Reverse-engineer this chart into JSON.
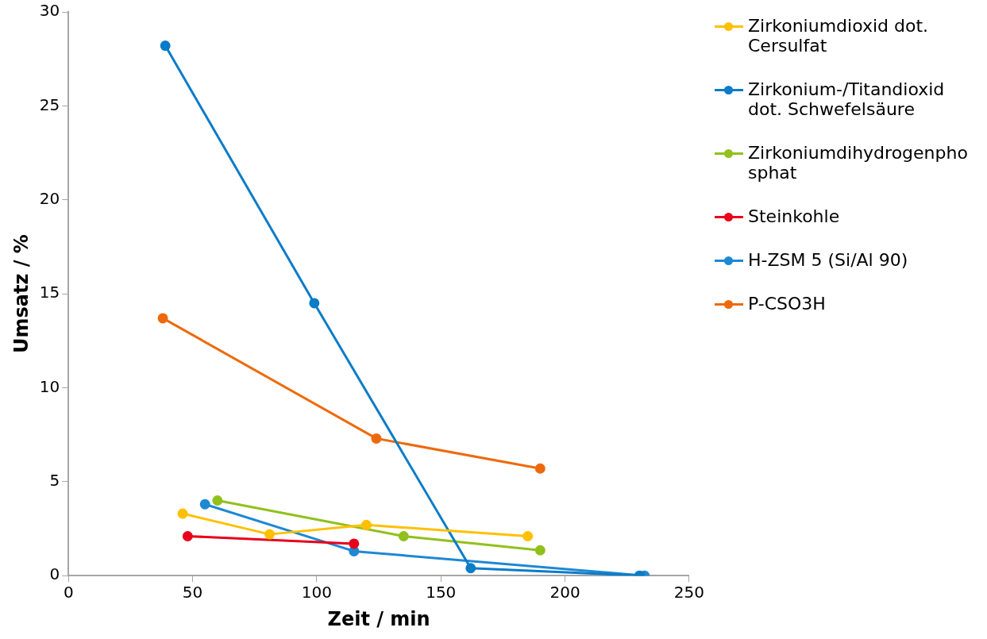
{
  "chart_data": {
    "type": "line",
    "xlabel": "Zeit / min",
    "ylabel": "Umsatz / %",
    "xlim": [
      0,
      250
    ],
    "xticks": [
      0,
      50,
      100,
      150,
      200,
      250
    ],
    "ylim": [
      0,
      30
    ],
    "yticks": [
      0,
      5,
      10,
      15,
      20,
      25,
      30
    ],
    "grid": false,
    "legend": "right",
    "marker": "circle",
    "line_style": "solid",
    "series": [
      {
        "name": "Zirkoniumdioxid dot. Cersulfat",
        "color": "#ffc000",
        "x": [
          46,
          81,
          120,
          185
        ],
        "values": [
          3.3,
          2.2,
          2.7,
          2.1
        ]
      },
      {
        "name": "Zirkonium-/Titandioxid dot. Schwefelsäure",
        "color": "#0a7cc8",
        "x": [
          39,
          99,
          162,
          230
        ],
        "values": [
          28.2,
          14.5,
          0.4,
          0
        ]
      },
      {
        "name": "Zirkoniumdihydrogenphosphat",
        "color": "#92c01c",
        "x": [
          60,
          135,
          190
        ],
        "values": [
          4.0,
          2.1,
          1.35
        ]
      },
      {
        "name": "Steinkohle",
        "color": "#e8001c",
        "x": [
          48,
          115
        ],
        "values": [
          2.1,
          1.7
        ]
      },
      {
        "name": "H-ZSM 5 (Si/Al 90)",
        "color": "#1e88d4",
        "x": [
          55,
          115,
          232
        ],
        "values": [
          3.8,
          1.3,
          0
        ]
      },
      {
        "name": "P-CSO3H",
        "color": "#ed6a0a",
        "x": [
          38,
          124,
          190
        ],
        "values": [
          13.7,
          7.3,
          5.7
        ]
      }
    ]
  }
}
